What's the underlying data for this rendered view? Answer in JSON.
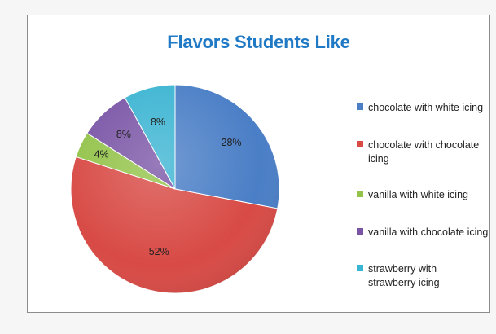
{
  "chart_data": {
    "type": "pie",
    "title": "Flavors Students Like",
    "categories": [
      "chocolate with white icing",
      "chocolate with chocolate icing",
      "vanilla with white icing",
      "vanilla with chocolate icing",
      "strawberry with strawberry icing"
    ],
    "values": [
      28,
      52,
      4,
      8,
      8
    ],
    "labels": [
      "28%",
      "52%",
      "4%",
      "8%",
      "8%"
    ],
    "colors": [
      "#4a7ec6",
      "#d84a45",
      "#93c34a",
      "#7a55a6",
      "#3bb4d2"
    ],
    "legend_position": "right"
  }
}
